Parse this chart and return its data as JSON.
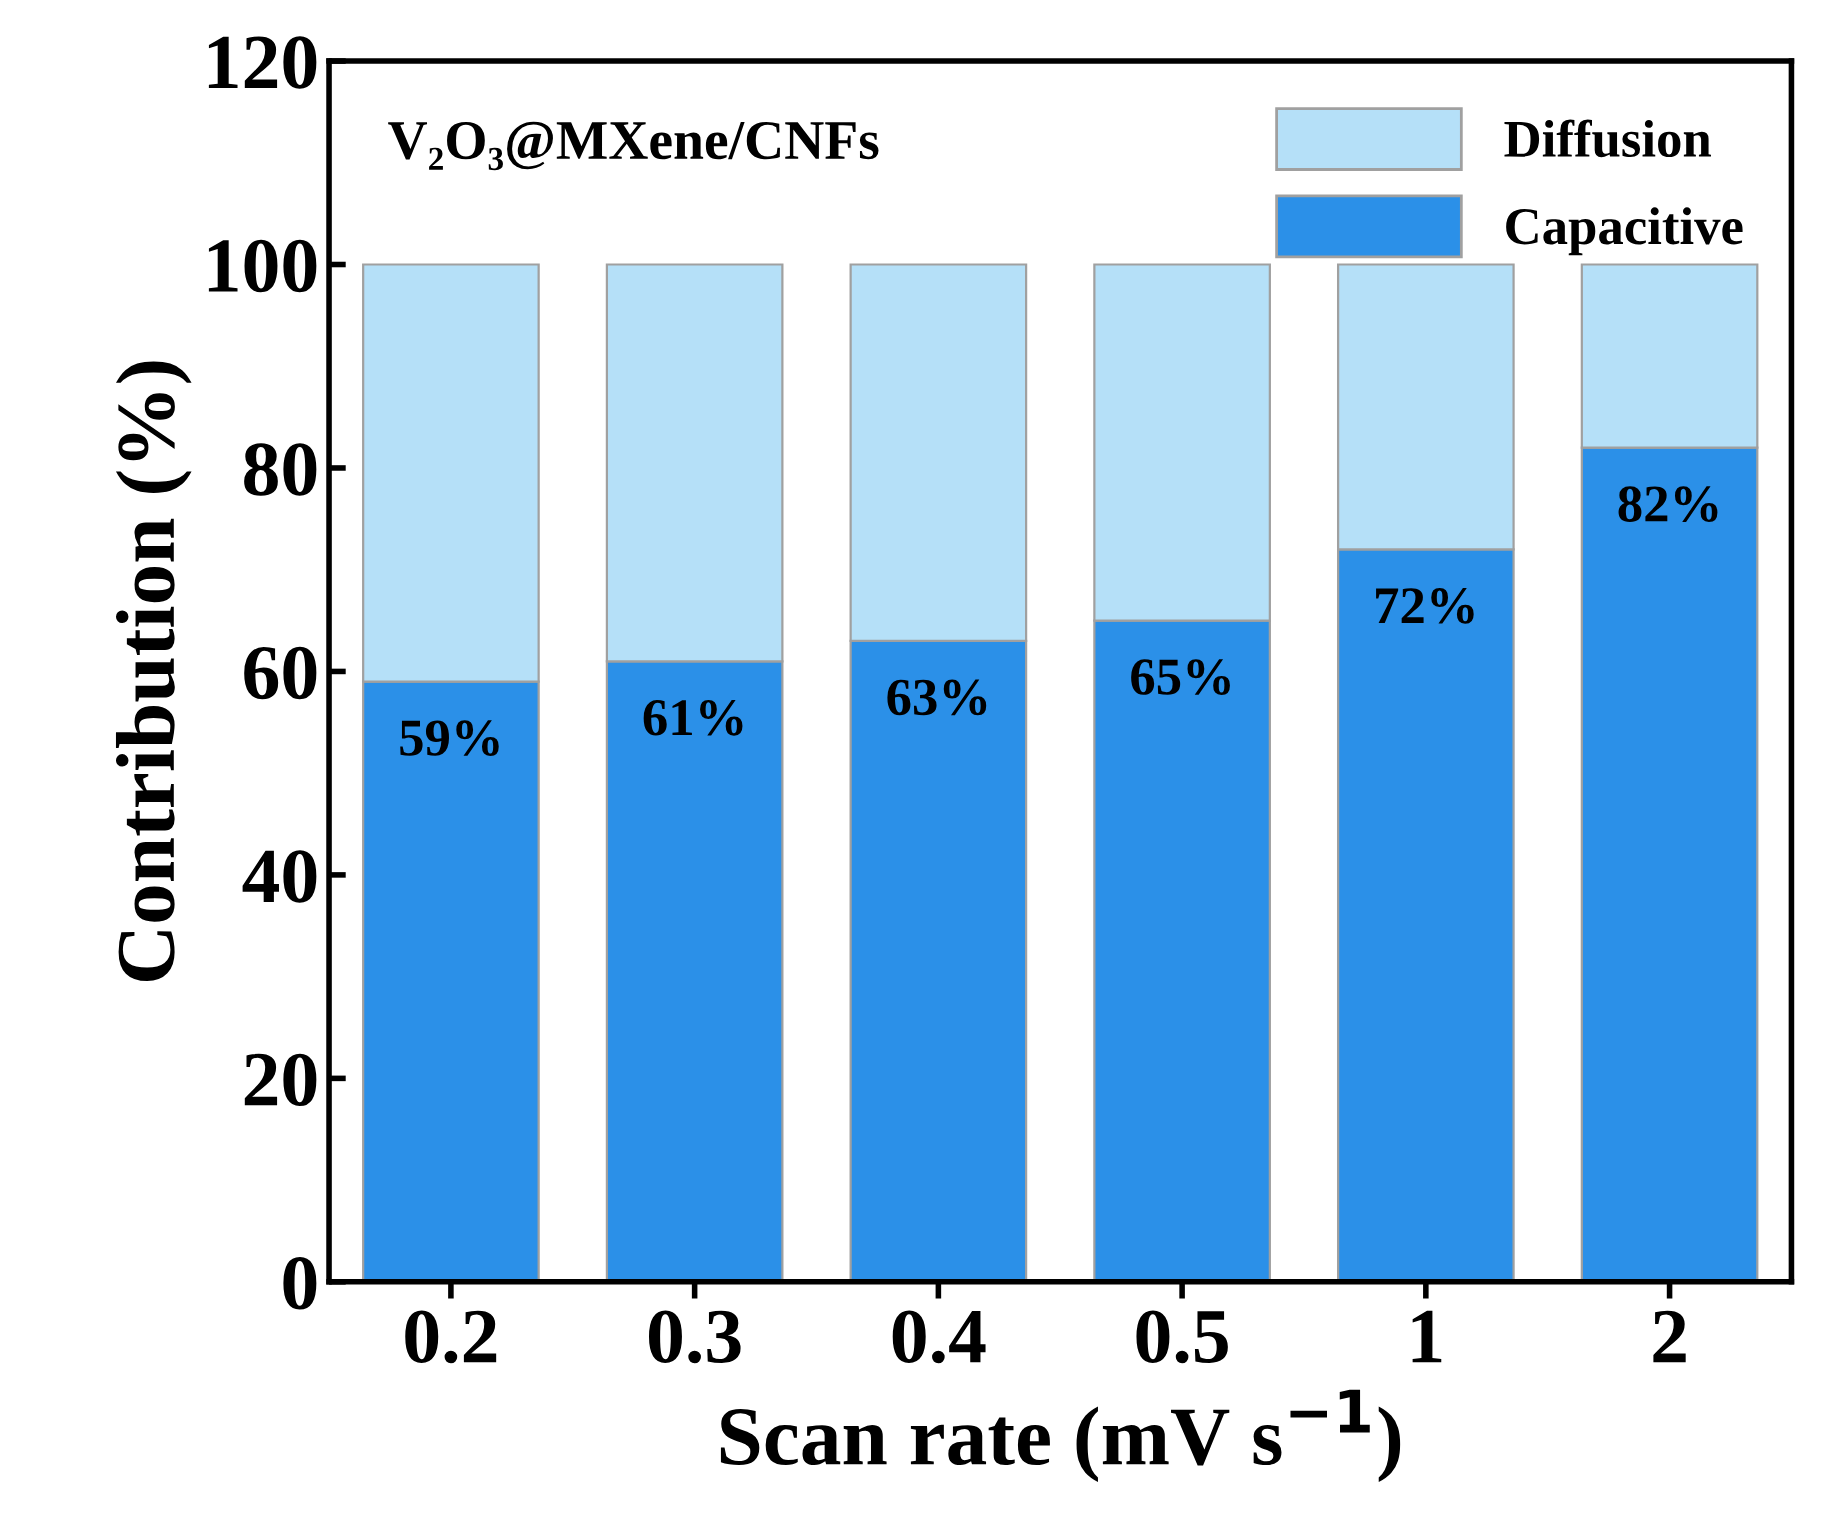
{
  "chart_data": {
    "type": "bar",
    "stacked": true,
    "xlabel": "Scan rate (mV s$^{−1}$)",
    "ylabel": "Contribution (%)",
    "categories": [
      "0.2",
      "0.3",
      "0.4",
      "0.5",
      "1",
      "2"
    ],
    "series": [
      {
        "name": "Capacitive",
        "color": "#2b90e8",
        "values": [
          59,
          61,
          63,
          65,
          72,
          82
        ],
        "value_labels": [
          "59%",
          "61%",
          "63%",
          "65%",
          "72%",
          "82%"
        ]
      },
      {
        "name": "Diffusion",
        "color": "#b5e0f8",
        "values": [
          41,
          39,
          37,
          35,
          28,
          18
        ]
      }
    ],
    "ylim": [
      0,
      120
    ],
    "yticks": [
      0,
      20,
      40,
      60,
      80,
      100,
      120
    ],
    "grid": false,
    "legend": "top right",
    "annotations": [
      "V₂O₃@MXene/CNFs"
    ]
  }
}
